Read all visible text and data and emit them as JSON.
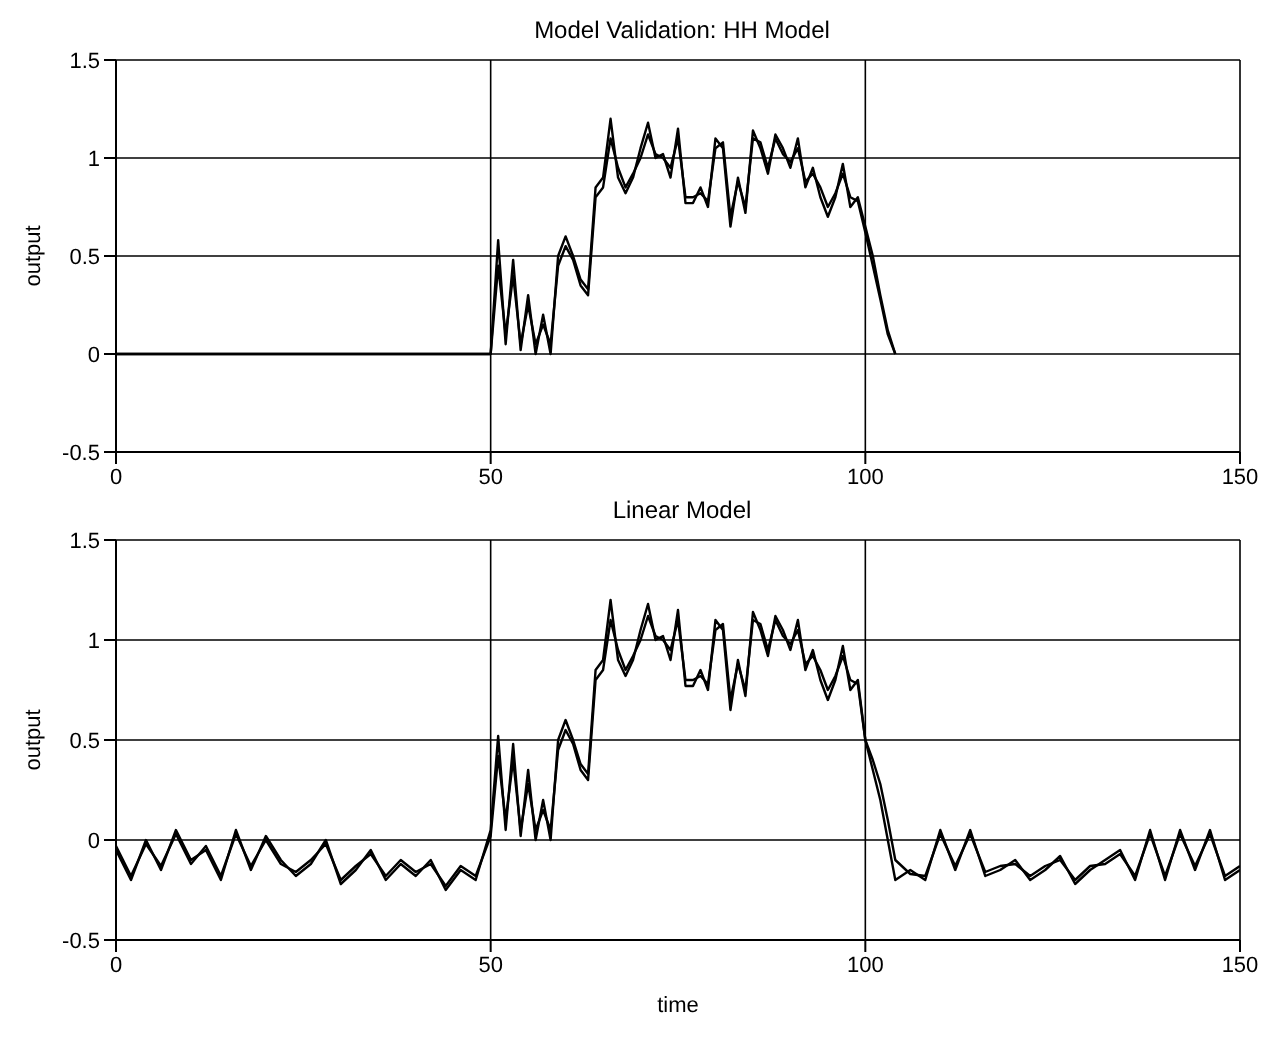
{
  "chart_data": [
    {
      "type": "line",
      "title": "Model Validation: HH Model",
      "ylabel": "output",
      "grid": true,
      "marker": "none",
      "line_style": "solid",
      "xlim": [
        0,
        150
      ],
      "xticks": [
        0,
        50,
        100,
        150
      ],
      "ylim": [
        -0.5,
        1.5
      ],
      "yticks": [
        -0.5,
        0,
        0.5,
        1,
        1.5
      ],
      "x": [
        0,
        50,
        51,
        52,
        53,
        54,
        55,
        56,
        57,
        58,
        59,
        60,
        61,
        62,
        63,
        64,
        65,
        66,
        67,
        68,
        69,
        70,
        71,
        72,
        73,
        74,
        75,
        76,
        77,
        78,
        79,
        80,
        81,
        82,
        83,
        84,
        85,
        86,
        87,
        88,
        89,
        90,
        91,
        92,
        93,
        94,
        95,
        96,
        97,
        98,
        99,
        100,
        101,
        102,
        103,
        104
      ],
      "series": [
        {
          "color": "#000000",
          "values": [
            0,
            0,
            0.58,
            0.05,
            0.48,
            0.02,
            0.3,
            0,
            0.2,
            0,
            0.5,
            0.6,
            0.5,
            0.38,
            0.33,
            0.85,
            0.9,
            1.2,
            0.9,
            0.82,
            0.9,
            1.05,
            1.18,
            1.0,
            1.02,
            0.9,
            1.15,
            0.77,
            0.77,
            0.85,
            0.75,
            1.1,
            1.05,
            0.65,
            0.9,
            0.72,
            1.14,
            1.05,
            0.92,
            1.12,
            1.05,
            0.95,
            1.1,
            0.85,
            0.95,
            0.8,
            0.7,
            0.8,
            0.97,
            0.75,
            0.8,
            0.65,
            0.5,
            0.3,
            0.12,
            0
          ]
        },
        {
          "color": "#000000",
          "values": [
            0,
            0,
            0.45,
            0.1,
            0.4,
            0.05,
            0.25,
            0.05,
            0.15,
            0.05,
            0.45,
            0.55,
            0.48,
            0.35,
            0.3,
            0.8,
            0.85,
            1.1,
            0.95,
            0.85,
            0.92,
            1.0,
            1.12,
            1.02,
            1.0,
            0.95,
            1.1,
            0.8,
            0.8,
            0.82,
            0.78,
            1.05,
            1.08,
            0.7,
            0.88,
            0.75,
            1.1,
            1.08,
            0.95,
            1.1,
            1.02,
            0.98,
            1.05,
            0.88,
            0.92,
            0.85,
            0.75,
            0.82,
            0.92,
            0.8,
            0.78,
            0.62,
            0.45,
            0.28,
            0.1,
            0
          ]
        }
      ]
    },
    {
      "type": "line",
      "title": "Linear Model",
      "xlabel": "time",
      "ylabel": "output",
      "grid": true,
      "marker": "none",
      "line_style": "solid",
      "xlim": [
        0,
        150
      ],
      "xticks": [
        0,
        50,
        100,
        150
      ],
      "ylim": [
        -0.5,
        1.5
      ],
      "yticks": [
        -0.5,
        0,
        0.5,
        1,
        1.5
      ],
      "x": [
        0,
        2,
        4,
        6,
        8,
        10,
        12,
        14,
        16,
        18,
        20,
        22,
        24,
        26,
        28,
        30,
        32,
        34,
        36,
        38,
        40,
        42,
        44,
        46,
        48,
        50,
        51,
        52,
        53,
        54,
        55,
        56,
        57,
        58,
        59,
        60,
        61,
        62,
        63,
        64,
        65,
        66,
        67,
        68,
        69,
        70,
        71,
        72,
        73,
        74,
        75,
        76,
        77,
        78,
        79,
        80,
        81,
        82,
        83,
        84,
        85,
        86,
        87,
        88,
        89,
        90,
        91,
        92,
        93,
        94,
        95,
        96,
        97,
        98,
        99,
        100,
        101,
        102,
        103,
        104,
        106,
        108,
        110,
        112,
        114,
        116,
        118,
        120,
        122,
        124,
        126,
        128,
        130,
        132,
        134,
        136,
        138,
        140,
        142,
        144,
        146,
        148,
        150
      ],
      "series": [
        {
          "color": "#000000",
          "values": [
            -0.05,
            -0.2,
            0.0,
            -0.15,
            0.05,
            -0.1,
            -0.05,
            -0.2,
            0.05,
            -0.15,
            0.02,
            -0.1,
            -0.18,
            -0.12,
            0.0,
            -0.22,
            -0.15,
            -0.05,
            -0.2,
            -0.12,
            -0.18,
            -0.1,
            -0.25,
            -0.15,
            -0.2,
            0.05,
            0.52,
            0.05,
            0.48,
            0.02,
            0.35,
            0,
            0.2,
            0,
            0.5,
            0.6,
            0.5,
            0.38,
            0.33,
            0.85,
            0.9,
            1.2,
            0.9,
            0.82,
            0.9,
            1.05,
            1.18,
            1.0,
            1.02,
            0.9,
            1.15,
            0.77,
            0.77,
            0.85,
            0.75,
            1.1,
            1.05,
            0.65,
            0.9,
            0.72,
            1.14,
            1.05,
            0.92,
            1.12,
            1.05,
            0.95,
            1.1,
            0.85,
            0.95,
            0.8,
            0.7,
            0.8,
            0.97,
            0.75,
            0.8,
            0.5,
            0.35,
            0.2,
            0.0,
            -0.2,
            -0.15,
            -0.2,
            0.05,
            -0.15,
            0.05,
            -0.18,
            -0.15,
            -0.1,
            -0.2,
            -0.15,
            -0.08,
            -0.22,
            -0.15,
            -0.1,
            -0.05,
            -0.2,
            0.05,
            -0.2,
            0.05,
            -0.15,
            0.05,
            -0.2,
            -0.15
          ]
        },
        {
          "color": "#000000",
          "values": [
            -0.03,
            -0.18,
            -0.02,
            -0.13,
            0.03,
            -0.12,
            -0.03,
            -0.18,
            0.03,
            -0.13,
            0.0,
            -0.12,
            -0.16,
            -0.1,
            -0.02,
            -0.2,
            -0.13,
            -0.07,
            -0.18,
            -0.1,
            -0.16,
            -0.12,
            -0.23,
            -0.13,
            -0.18,
            0.02,
            0.42,
            0.1,
            0.4,
            0.05,
            0.28,
            0.05,
            0.15,
            0.05,
            0.45,
            0.55,
            0.48,
            0.35,
            0.3,
            0.8,
            0.85,
            1.1,
            0.95,
            0.85,
            0.92,
            1.0,
            1.12,
            1.02,
            1.0,
            0.95,
            1.1,
            0.8,
            0.8,
            0.82,
            0.78,
            1.05,
            1.08,
            0.7,
            0.88,
            0.75,
            1.1,
            1.08,
            0.95,
            1.1,
            1.02,
            0.98,
            1.05,
            0.88,
            0.92,
            0.85,
            0.75,
            0.82,
            0.92,
            0.8,
            0.78,
            0.5,
            0.4,
            0.28,
            0.1,
            -0.1,
            -0.17,
            -0.18,
            0.03,
            -0.13,
            0.03,
            -0.16,
            -0.13,
            -0.12,
            -0.18,
            -0.13,
            -0.1,
            -0.2,
            -0.13,
            -0.12,
            -0.07,
            -0.18,
            0.03,
            -0.18,
            0.03,
            -0.13,
            0.03,
            -0.18,
            -0.13
          ]
        }
      ]
    }
  ]
}
